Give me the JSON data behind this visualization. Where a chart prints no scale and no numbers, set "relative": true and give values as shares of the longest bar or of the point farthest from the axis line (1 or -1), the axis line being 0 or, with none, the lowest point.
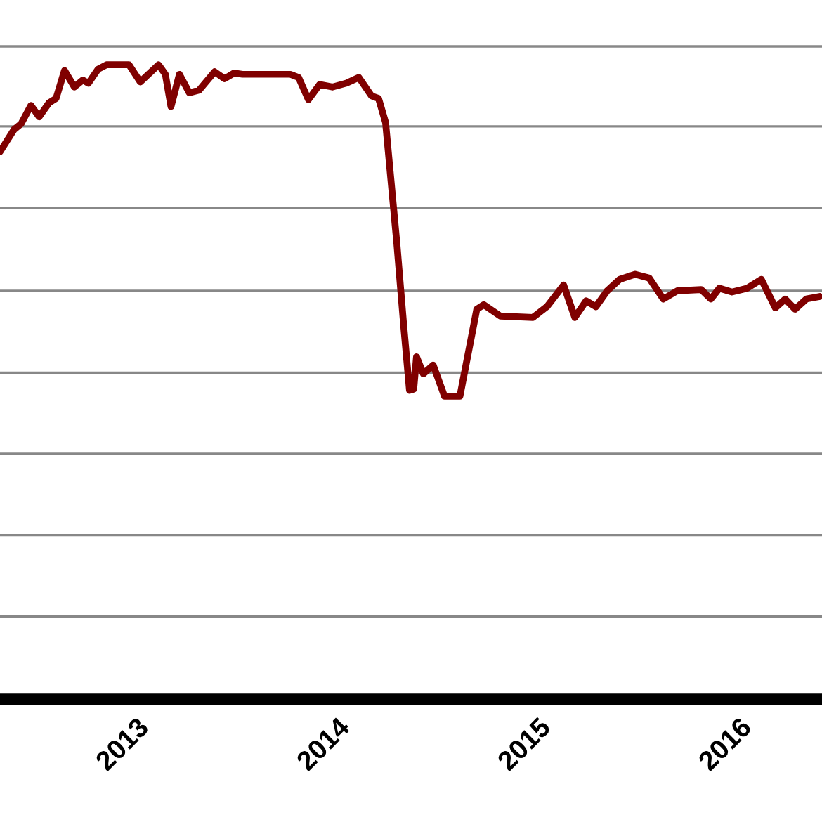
{
  "chart_data": {
    "type": "line",
    "relative": true,
    "x": [
      2012.385,
      2012.455,
      2012.49,
      2012.539,
      2012.58,
      2012.629,
      2012.664,
      2012.706,
      2012.755,
      2012.797,
      2012.825,
      2012.873,
      2012.915,
      2013.027,
      2013.083,
      2013.174,
      2013.208,
      2013.236,
      2013.278,
      2013.327,
      2013.376,
      2013.453,
      2013.502,
      2013.55,
      2013.592,
      2013.83,
      2013.871,
      2013.92,
      2013.976,
      2014.039,
      2014.109,
      2014.171,
      2014.234,
      2014.269,
      2014.304,
      2014.36,
      2014.395,
      2014.423,
      2014.444,
      2014.458,
      2014.492,
      2014.541,
      2014.597,
      2014.674,
      2014.758,
      2014.793,
      2014.876,
      2015.037,
      2015.107,
      2015.19,
      2015.246,
      2015.302,
      2015.351,
      2015.407,
      2015.469,
      2015.546,
      2015.616,
      2015.686,
      2015.756,
      2015.874,
      2015.923,
      2015.965,
      2016.028,
      2016.104,
      2016.174,
      2016.244,
      2016.293,
      2016.342,
      2016.398,
      2016.465
    ],
    "series": [
      {
        "color": "#800000",
        "values": [
          0.863,
          0.898,
          0.907,
          0.936,
          0.918,
          0.94,
          0.947,
          0.991,
          0.965,
          0.976,
          0.971,
          0.993,
          1.0,
          1.0,
          0.973,
          1.0,
          0.985,
          0.934,
          0.985,
          0.956,
          0.96,
          0.989,
          0.978,
          0.987,
          0.985,
          0.985,
          0.98,
          0.945,
          0.969,
          0.965,
          0.971,
          0.98,
          0.951,
          0.947,
          0.909,
          0.719,
          0.586,
          0.487,
          0.489,
          0.54,
          0.513,
          0.527,
          0.478,
          0.478,
          0.615,
          0.622,
          0.604,
          0.602,
          0.619,
          0.653,
          0.602,
          0.628,
          0.619,
          0.644,
          0.662,
          0.67,
          0.664,
          0.631,
          0.644,
          0.646,
          0.631,
          0.648,
          0.642,
          0.648,
          0.662,
          0.617,
          0.631,
          0.615,
          0.631,
          0.635
        ]
      }
    ],
    "xlim": [
      2012.385,
      2016.476
    ],
    "xticks": [
      2013,
      2014,
      2015,
      2016
    ],
    "ref_lines": [
      {
        "axis": "y",
        "value": 0.131,
        "color": "#888888"
      },
      {
        "axis": "y",
        "value": 0.259,
        "color": "#888888"
      },
      {
        "axis": "y",
        "value": 0.387,
        "color": "#888888"
      },
      {
        "axis": "y",
        "value": 0.515,
        "color": "#888888"
      },
      {
        "axis": "y",
        "value": 0.644,
        "color": "#888888"
      },
      {
        "axis": "y",
        "value": 0.774,
        "color": "#888888"
      },
      {
        "axis": "y",
        "value": 0.903,
        "color": "#888888"
      },
      {
        "axis": "y",
        "value": 1.029,
        "color": "#888888"
      }
    ],
    "tick_labels": "x",
    "line_style": "solid"
  }
}
